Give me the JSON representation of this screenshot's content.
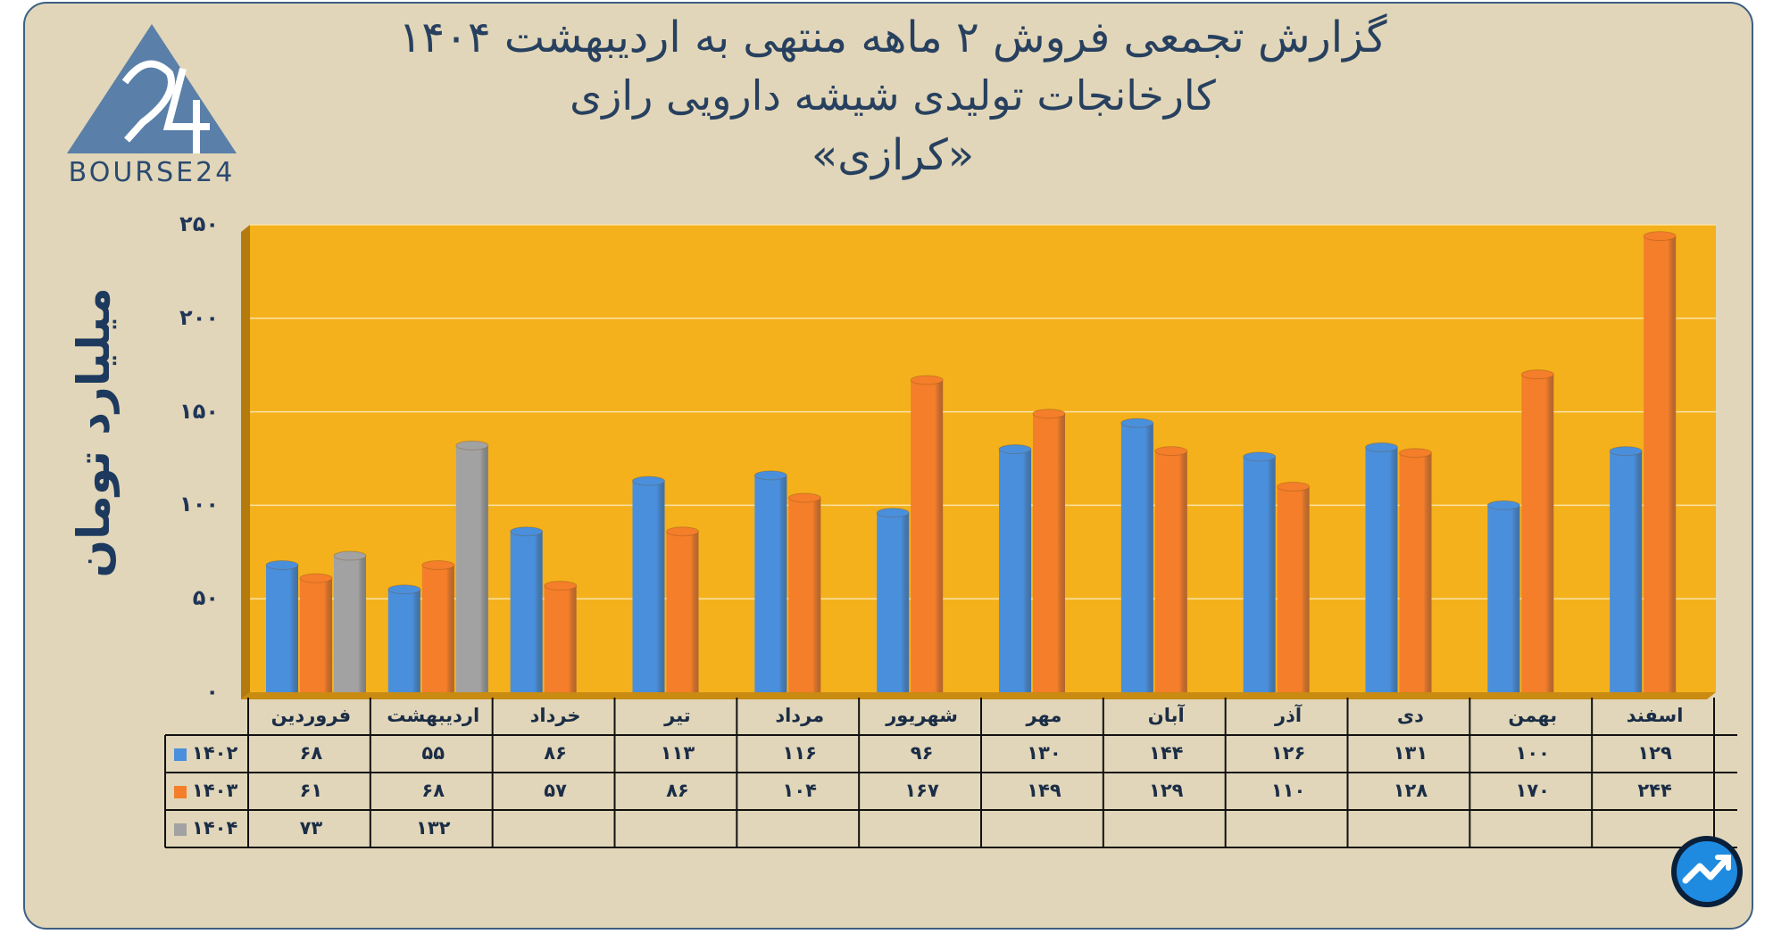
{
  "title_lines": [
    "گزارش تجمعی فروش ۲ ماهه منتهی به اردیبهشت ۱۴۰۴",
    "کارخانجات تولیدی شیشه دارویی رازی",
    "«کرازی»"
  ],
  "logo_text": "BOURSE24",
  "colors": {
    "card": "#e1d6b9",
    "border": "#3d5f83",
    "plot_bg": "#f4b11c",
    "s1402": "#4a8fdb",
    "s1403": "#f47e2a",
    "s1404": "#a2a2a2"
  },
  "chart_data": {
    "type": "bar",
    "title": "گزارش تجمعی فروش ۲ ماهه منتهی به اردیبهشت ۱۴۰۴ کارخانجات تولیدی شیشه دارویی رازی «کرازی»",
    "ylabel": "میلیارد تومان",
    "xlabel": "",
    "ylim": [
      0,
      250
    ],
    "yticks": [
      0,
      50,
      100,
      150,
      200,
      250
    ],
    "ytick_labels": [
      "۰",
      "۵۰",
      "۱۰۰",
      "۱۵۰",
      "۲۰۰",
      "۲۵۰"
    ],
    "grid": true,
    "legend": "table-left",
    "categories": [
      "فروردین",
      "اردیبهشت",
      "خرداد",
      "تیر",
      "مرداد",
      "شهریور",
      "مهر",
      "آبان",
      "آذر",
      "دی",
      "بهمن",
      "اسفند"
    ],
    "series": [
      {
        "name": "۱۴۰۲",
        "color": "#4a8fdb",
        "values": [
          68,
          55,
          86,
          113,
          116,
          96,
          130,
          144,
          126,
          131,
          100,
          129
        ],
        "labels": [
          "۶۸",
          "۵۵",
          "۸۶",
          "۱۱۳",
          "۱۱۶",
          "۹۶",
          "۱۳۰",
          "۱۴۴",
          "۱۲۶",
          "۱۳۱",
          "۱۰۰",
          "۱۲۹"
        ]
      },
      {
        "name": "۱۴۰۳",
        "color": "#f47e2a",
        "values": [
          61,
          68,
          57,
          86,
          104,
          167,
          149,
          129,
          110,
          128,
          170,
          244
        ],
        "labels": [
          "۶۱",
          "۶۸",
          "۵۷",
          "۸۶",
          "۱۰۴",
          "۱۶۷",
          "۱۴۹",
          "۱۲۹",
          "۱۱۰",
          "۱۲۸",
          "۱۷۰",
          "۲۴۴"
        ]
      },
      {
        "name": "۱۴۰۴",
        "color": "#a2a2a2",
        "values": [
          73,
          132,
          null,
          null,
          null,
          null,
          null,
          null,
          null,
          null,
          null,
          null
        ],
        "labels": [
          "۷۳",
          "۱۳۲",
          "",
          "",
          "",
          "",
          "",
          "",
          "",
          "",
          "",
          ""
        ]
      }
    ]
  }
}
